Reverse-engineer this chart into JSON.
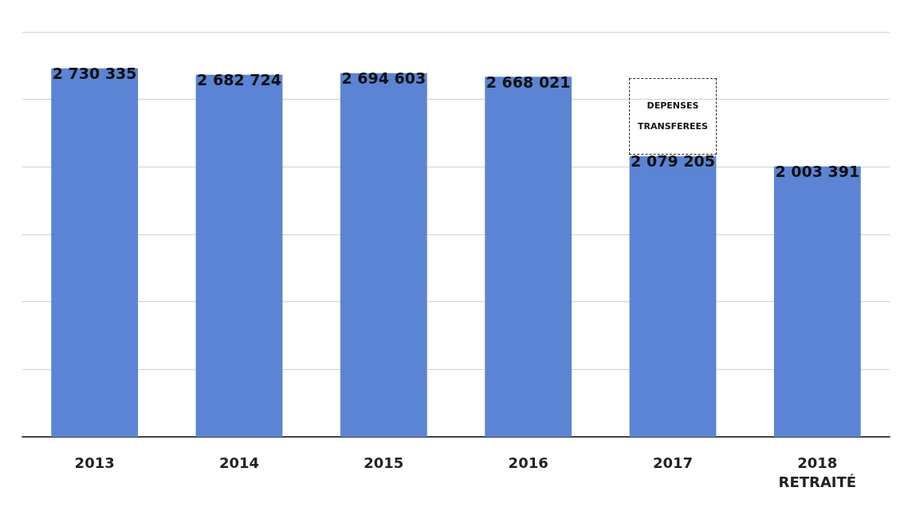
{
  "chart_data": {
    "type": "bar",
    "categories": [
      "2013",
      "2014",
      "2015",
      "2016",
      "2017",
      "2018\nRETRAITÉ"
    ],
    "values": [
      2730335,
      2682724,
      2694603,
      2668021,
      2079205,
      2003391
    ],
    "value_labels": [
      "2 730 335",
      "2 682 724",
      "2 694 603",
      "2 668 021",
      "2 079 205",
      "2 003 391"
    ],
    "color": "#5b84d4",
    "ylim": [
      0,
      3000000
    ],
    "yticks": [
      0,
      500000,
      1000000,
      1500000,
      2000000,
      2500000,
      3000000
    ],
    "tick_labels": "x",
    "grid": "y",
    "annotations": [
      {
        "text": "DEPENSES\nTRANSFEREES",
        "x": "2017",
        "y": 2079205
      }
    ]
  }
}
